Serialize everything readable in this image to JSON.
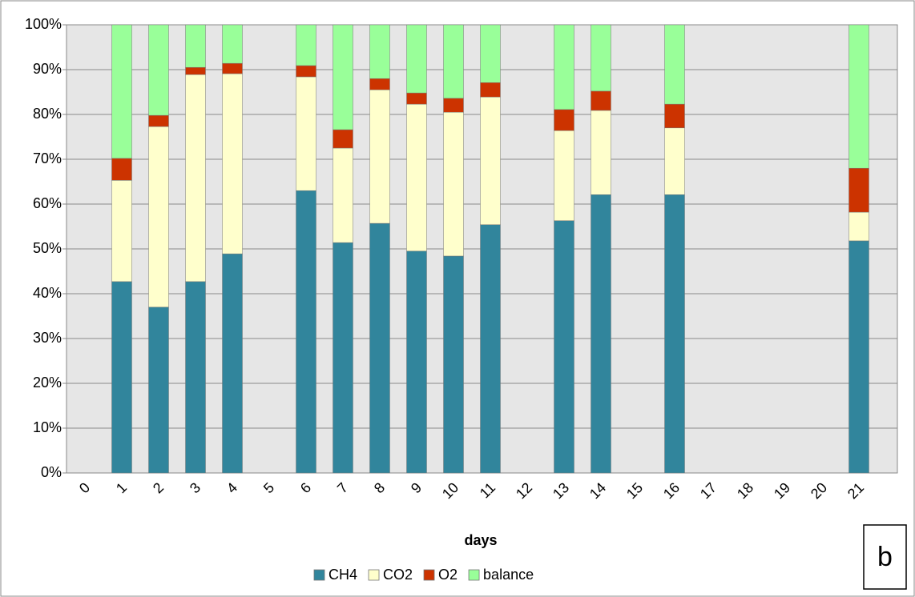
{
  "chart_data": {
    "type": "stacked_bar_percent",
    "x_label": "days",
    "annotation": "b",
    "categories": [
      "0",
      "1",
      "2",
      "3",
      "4",
      "5",
      "6",
      "7",
      "8",
      "9",
      "10",
      "11",
      "12",
      "13",
      "14",
      "15",
      "16",
      "17",
      "18",
      "19",
      "20",
      "21"
    ],
    "series": [
      {
        "name": "CH4",
        "color": "#31859c",
        "values": [
          null,
          42.7,
          37.0,
          42.7,
          48.9,
          null,
          63.0,
          51.4,
          55.7,
          49.5,
          48.4,
          55.4,
          null,
          56.3,
          62.1,
          null,
          62.1,
          null,
          null,
          null,
          null,
          51.8
        ]
      },
      {
        "name": "CO2",
        "color": "#ffffcc",
        "values": [
          null,
          22.6,
          40.3,
          46.2,
          40.2,
          null,
          25.4,
          21.1,
          29.8,
          32.8,
          32.1,
          28.5,
          null,
          20.1,
          18.8,
          null,
          14.9,
          null,
          null,
          null,
          null,
          6.4
        ]
      },
      {
        "name": "O2",
        "color": "#cc3300",
        "values": [
          null,
          4.9,
          2.5,
          1.6,
          2.3,
          null,
          2.5,
          4.1,
          2.5,
          2.5,
          3.1,
          3.2,
          null,
          4.7,
          4.3,
          null,
          5.3,
          null,
          null,
          null,
          null,
          9.8
        ]
      },
      {
        "name": "balance",
        "color": "#99ff99",
        "values": [
          null,
          29.8,
          20.2,
          9.5,
          8.6,
          null,
          9.1,
          23.4,
          12.0,
          15.2,
          16.4,
          12.9,
          null,
          18.9,
          14.8,
          null,
          17.7,
          null,
          null,
          null,
          null,
          32.0
        ]
      }
    ],
    "ylim": [
      0,
      100
    ],
    "yticks": [
      {
        "value": 0,
        "label": "0%"
      },
      {
        "value": 10,
        "label": "10%"
      },
      {
        "value": 20,
        "label": "20%"
      },
      {
        "value": 30,
        "label": "30%"
      },
      {
        "value": 40,
        "label": "40%"
      },
      {
        "value": 50,
        "label": "50%"
      },
      {
        "value": 60,
        "label": "60%"
      },
      {
        "value": 70,
        "label": "70%"
      },
      {
        "value": 80,
        "label": "80%"
      },
      {
        "value": 90,
        "label": "90%"
      },
      {
        "value": 100,
        "label": "100%"
      }
    ],
    "grid": true,
    "legend": "bottom"
  }
}
